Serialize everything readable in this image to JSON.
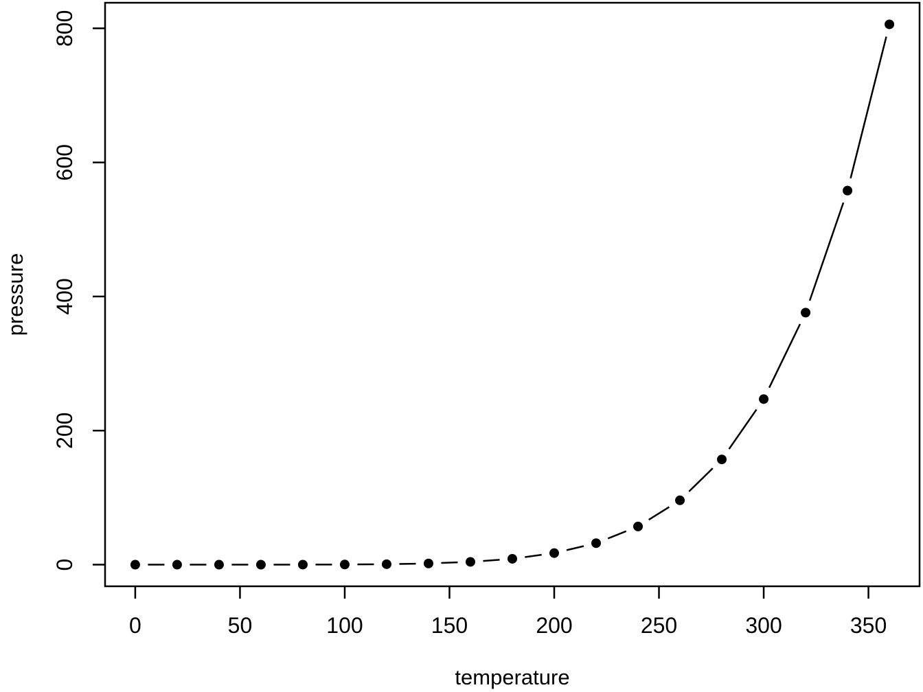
{
  "figure": {
    "background": "#ffffff",
    "foreground": "#000000"
  },
  "chart_data": {
    "type": "line",
    "style": "points-with-gapped-line-segments",
    "title": "",
    "xlabel": "temperature",
    "ylabel": "pressure",
    "x": [
      0,
      20,
      40,
      60,
      80,
      100,
      120,
      140,
      160,
      180,
      200,
      220,
      240,
      260,
      280,
      300,
      320,
      340,
      360
    ],
    "y": [
      0.0002,
      0.0012,
      0.006,
      0.03,
      0.09,
      0.27,
      0.75,
      1.85,
      4.2,
      8.8,
      17.3,
      32.1,
      57,
      96,
      157,
      247,
      376,
      558,
      806
    ],
    "xticks": [
      0,
      50,
      100,
      150,
      200,
      250,
      300,
      350
    ],
    "yticks": [
      0,
      200,
      400,
      600,
      800
    ],
    "xlim": [
      -14.4,
      374.4
    ],
    "ylim": [
      -32.2,
      838.2
    ],
    "grid": false,
    "legend": null,
    "marker": "filled-circle",
    "marker_radius": 7,
    "point_gap": 18.5,
    "line_width": 2.5,
    "color": "#000000"
  }
}
